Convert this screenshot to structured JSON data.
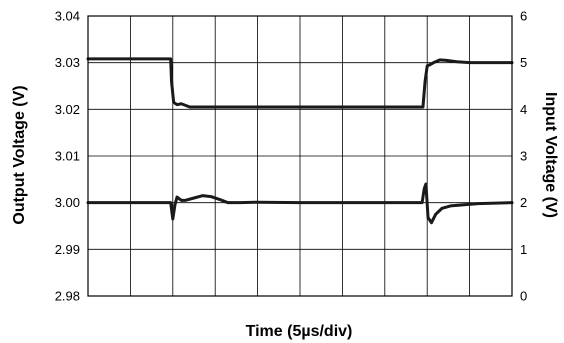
{
  "chart_data": {
    "type": "line",
    "xlabel": "Time (5µs/div)",
    "ylabel_left": "Output Voltage (V)",
    "ylabel_right": "Input Voltage (V)",
    "x_divisions": 10,
    "xlim": [
      0,
      10
    ],
    "ylim_left": [
      2.98,
      3.04
    ],
    "ylim_right": [
      0,
      6
    ],
    "yticks_left": [
      "3.04",
      "3.03",
      "3.02",
      "3.01",
      "3.00",
      "2.99",
      "2.98"
    ],
    "yticks_right": [
      "6",
      "5",
      "4",
      "3",
      "2",
      "1",
      "0"
    ],
    "grid": true,
    "colors": {
      "trace": "#1a1a1a",
      "grid": "#000000"
    },
    "series": [
      {
        "axis": "right",
        "x": [
          0,
          1.95,
          1.97,
          2.02,
          2.1,
          2.2,
          2.4,
          3,
          5,
          7,
          7.9,
          7.95,
          8.0,
          8.05,
          8.15,
          8.3,
          8.45,
          8.7,
          9,
          10
        ],
        "y": [
          5.08,
          5.08,
          4.6,
          4.15,
          4.1,
          4.12,
          4.05,
          4.05,
          4.05,
          4.05,
          4.05,
          4.6,
          4.93,
          4.95,
          5.0,
          5.06,
          5.05,
          5.02,
          5.0,
          5.0
        ]
      },
      {
        "axis": "left",
        "x": [
          0,
          1.8,
          1.95,
          2.0,
          2.05,
          2.1,
          2.2,
          2.3,
          2.5,
          2.7,
          2.9,
          3.1,
          3.3,
          3.6,
          4,
          5,
          6,
          7.5,
          7.88,
          7.93,
          7.97,
          8.02,
          8.1,
          8.2,
          8.35,
          8.55,
          8.8,
          9.2,
          10
        ],
        "y": [
          3.0,
          3.0,
          3.0,
          2.9965,
          2.9995,
          3.0012,
          3.0005,
          3.0005,
          3.001,
          3.0015,
          3.0013,
          3.0007,
          3.0,
          3.0,
          3.0001,
          3.0,
          3.0,
          3.0,
          3.0,
          3.003,
          3.004,
          2.9968,
          2.9957,
          2.9975,
          2.9988,
          2.9993,
          2.9995,
          2.9998,
          3.0
        ]
      }
    ]
  }
}
